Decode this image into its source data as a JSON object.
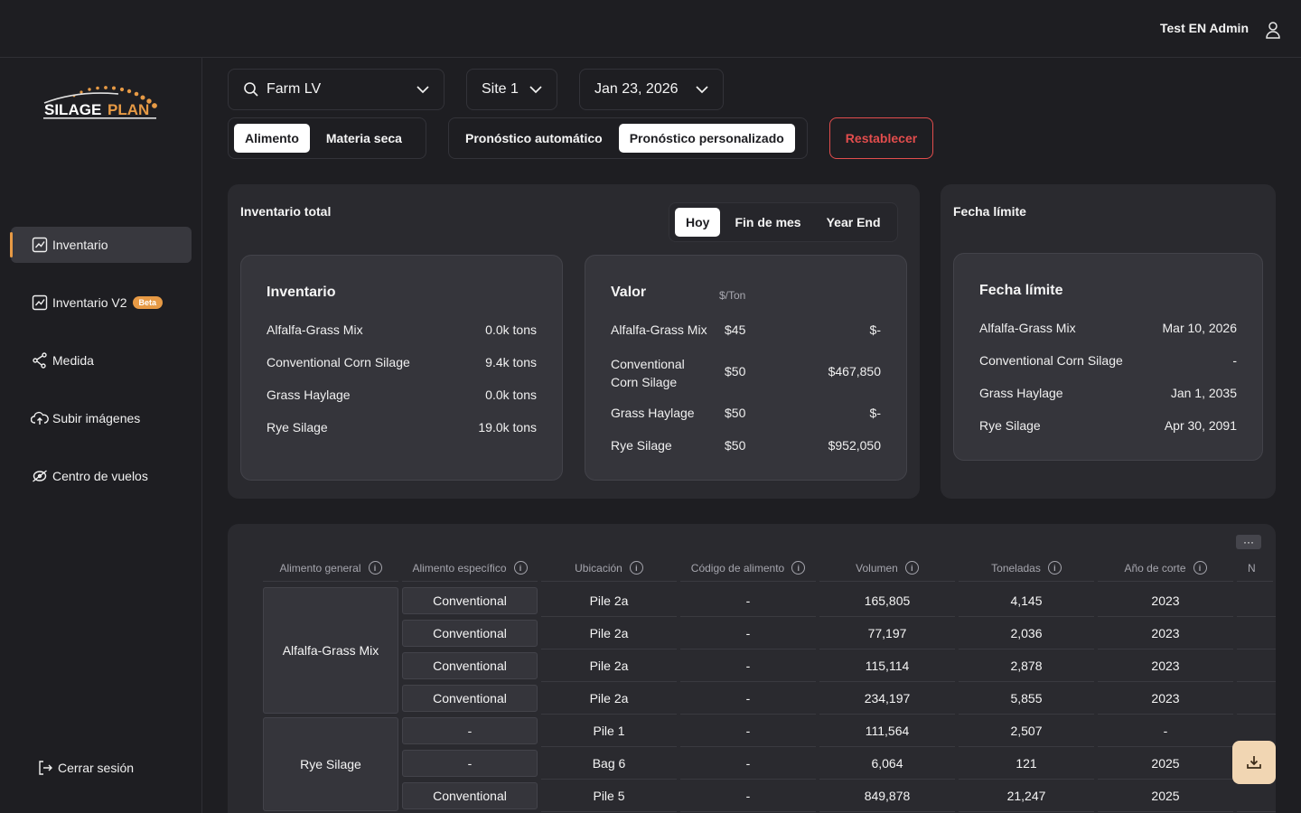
{
  "header": {
    "user_name": "Test EN Admin",
    "user_icon": "user-icon"
  },
  "brand": {
    "logo_text_a": "SILAGE",
    "logo_text_b": "PLAN",
    "accent": "#e79a45"
  },
  "sidebar": {
    "items": [
      {
        "label": "Inventario",
        "icon": "chart-icon",
        "active": true
      },
      {
        "label": "Inventario V2",
        "icon": "chart-icon",
        "badge": "Beta"
      },
      {
        "label": "Medida",
        "icon": "measure-icon"
      },
      {
        "label": "Subir imágenes",
        "icon": "cloud-upload-icon"
      },
      {
        "label": "Centro de vuelos",
        "icon": "drone-icon"
      }
    ],
    "logout": "Cerrar sesión"
  },
  "filters": {
    "farm": "Farm LV",
    "site": "Site 1",
    "date": "Jan 23, 2026",
    "basis": [
      "Alimento",
      "Materia seca"
    ],
    "forecast": [
      "Pronóstico automático",
      "Pronóstico personalizado"
    ],
    "reset": "Restablecer"
  },
  "inventory_panel": {
    "title": "Inventario total",
    "periods": [
      "Hoy",
      "Fin de mes",
      "Year End"
    ],
    "inventory_card": {
      "title": "Inventario",
      "rows": [
        {
          "name": "Alfalfa-Grass Mix",
          "value": "0.0k tons"
        },
        {
          "name": "Conventional Corn Silage",
          "value": "9.4k tons"
        },
        {
          "name": "Grass Haylage",
          "value": "0.0k tons"
        },
        {
          "name": "Rye Silage",
          "value": "19.0k tons"
        }
      ]
    },
    "value_card": {
      "title": "Valor",
      "unit": "$/Ton",
      "rows": [
        {
          "name": "Alfalfa-Grass Mix",
          "price": "$45",
          "total": "$-"
        },
        {
          "name": "Conventional Corn Silage",
          "price": "$50",
          "total": "$467,850"
        },
        {
          "name": "Grass Haylage",
          "price": "$50",
          "total": "$-"
        },
        {
          "name": "Rye Silage",
          "price": "$50",
          "total": "$952,050"
        }
      ]
    }
  },
  "deadline_panel": {
    "title": "Fecha límite",
    "card_title": "Fecha límite",
    "rows": [
      {
        "name": "Alfalfa-Grass Mix",
        "date": "Mar 10, 2026"
      },
      {
        "name": "Conventional Corn Silage",
        "date": "-"
      },
      {
        "name": "Grass Haylage",
        "date": "Jan 1, 2035"
      },
      {
        "name": "Rye Silage",
        "date": "Apr 30, 2091"
      }
    ]
  },
  "table": {
    "more": "···",
    "columns": [
      "Alimento general",
      "Alimento específico",
      "Ubicación",
      "Código de alimento",
      "Volumen",
      "Toneladas",
      "Año de corte",
      "N"
    ],
    "groups": [
      {
        "name": "Alfalfa-Grass Mix",
        "rows": 4
      },
      {
        "name": "Rye Silage",
        "rows": 3
      }
    ],
    "rows": [
      {
        "specific": "Conventional",
        "location": "Pile 2a",
        "code": "-",
        "volume": "165,805",
        "tons": "4,145",
        "year": "2023"
      },
      {
        "specific": "Conventional",
        "location": "Pile 2a",
        "code": "-",
        "volume": "77,197",
        "tons": "2,036",
        "year": "2023"
      },
      {
        "specific": "Conventional",
        "location": "Pile 2a",
        "code": "-",
        "volume": "115,114",
        "tons": "2,878",
        "year": "2023"
      },
      {
        "specific": "Conventional",
        "location": "Pile 2a",
        "code": "-",
        "volume": "234,197",
        "tons": "5,855",
        "year": "2023"
      },
      {
        "specific": "-",
        "location": "Pile 1",
        "code": "-",
        "volume": "111,564",
        "tons": "2,507",
        "year": "-"
      },
      {
        "specific": "-",
        "location": "Bag 6",
        "code": "-",
        "volume": "6,064",
        "tons": "121",
        "year": "2025"
      },
      {
        "specific": "Conventional",
        "location": "Pile 5",
        "code": "-",
        "volume": "849,878",
        "tons": "21,247",
        "year": "2025"
      }
    ]
  }
}
